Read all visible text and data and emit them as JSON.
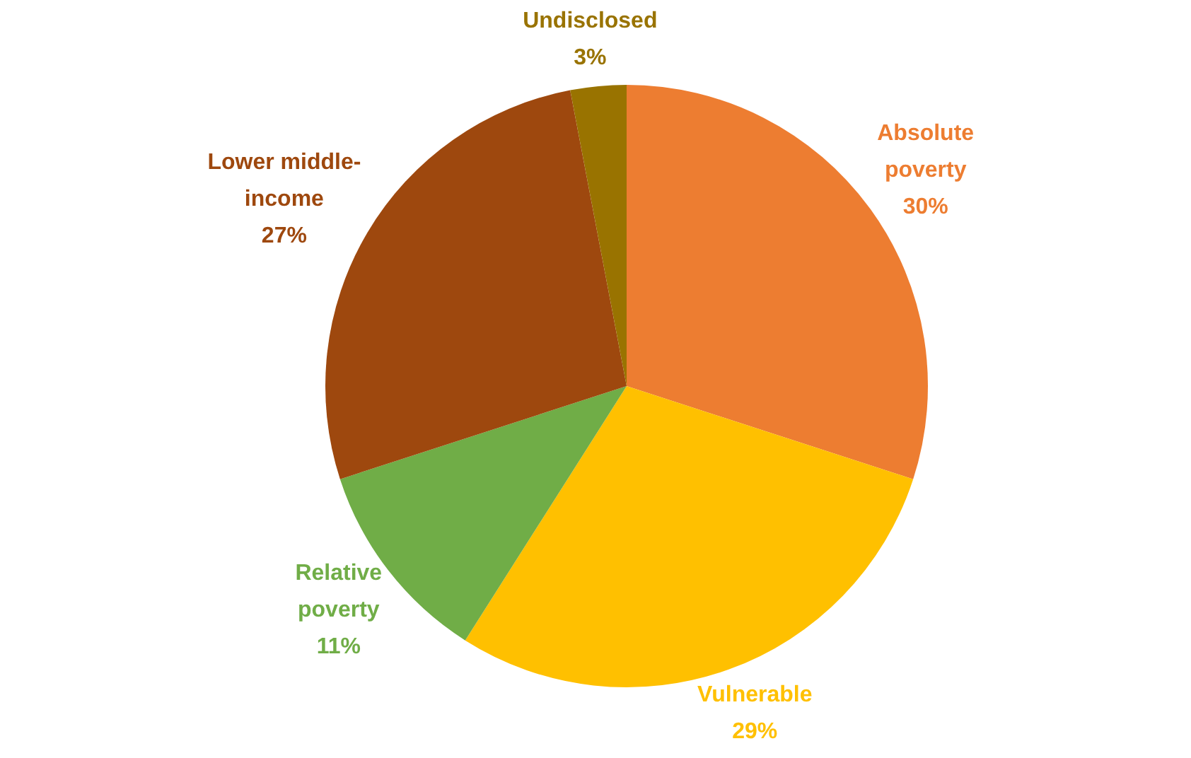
{
  "chart_data": {
    "type": "pie",
    "categories": [
      "Absolute poverty",
      "Vulnerable",
      "Relative poverty",
      "Lower middle-income",
      "Undisclosed"
    ],
    "values": [
      30,
      29,
      11,
      27,
      3
    ],
    "value_labels": [
      "30%",
      "29%",
      "11%",
      "27%",
      "3%"
    ],
    "colors": [
      "#ed7d31",
      "#ffc000",
      "#70ad47",
      "#9e480e",
      "#997300"
    ],
    "legend": false
  }
}
